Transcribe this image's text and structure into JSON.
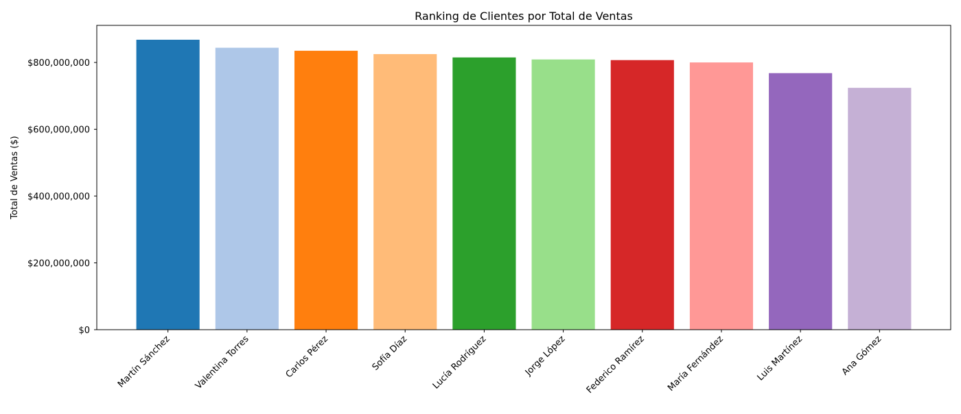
{
  "chart_data": {
    "type": "bar",
    "title": "Ranking de Clientes por Total de Ventas",
    "xlabel": "",
    "ylabel": "Total de Ventas ($)",
    "categories": [
      "Martín Sánchez",
      "Valentina Torres",
      "Carlos Pérez",
      "Sofía Díaz",
      "Lucía Rodríguez",
      "Jorge López",
      "Federico Ramírez",
      "María Fernández",
      "Luis Martínez",
      "Ana Gómez"
    ],
    "values": [
      868000000,
      844000000,
      835000000,
      825000000,
      815000000,
      809000000,
      807000000,
      800000000,
      768000000,
      724000000
    ],
    "colors": [
      "#1f77b4",
      "#aec7e8",
      "#ff7f0e",
      "#ffbb78",
      "#2ca02c",
      "#98df8a",
      "#d62728",
      "#ff9896",
      "#9467bd",
      "#c5b0d5"
    ],
    "ylim": [
      0,
      911000000
    ],
    "y_ticks": [
      0,
      200000000,
      400000000,
      600000000,
      800000000
    ],
    "y_tick_labels": [
      "$0",
      "$200,000,000",
      "$400,000,000",
      "$600,000,000",
      "$800,000,000"
    ],
    "grid": false,
    "legend": "none"
  }
}
